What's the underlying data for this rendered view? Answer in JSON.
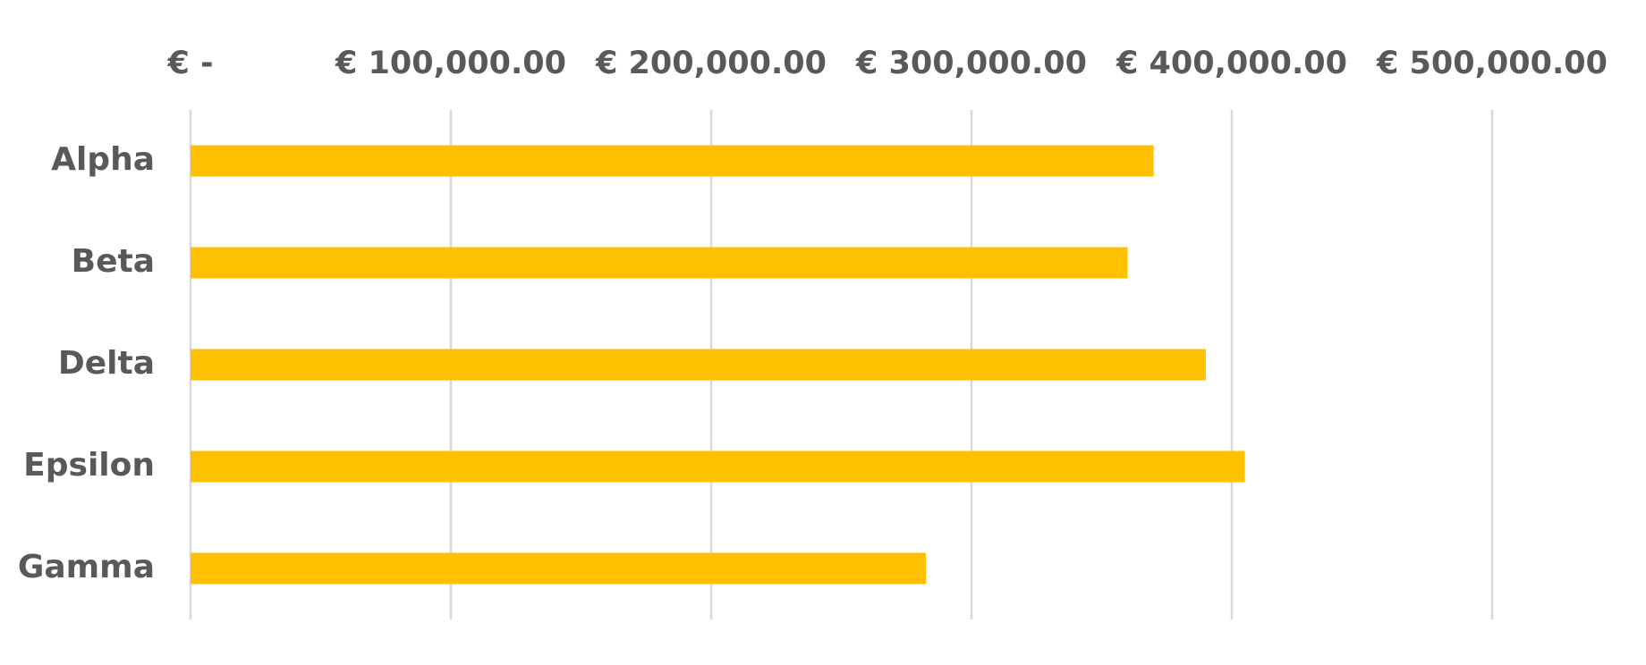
{
  "chart_data": {
    "type": "bar",
    "orientation": "horizontal",
    "categories": [
      "Alpha",
      "Beta",
      "Delta",
      "Epsilon",
      "Gamma"
    ],
    "values": [
      370000,
      360000,
      390000,
      405000,
      282500
    ],
    "xlim": [
      0,
      500000
    ],
    "x_ticks": [
      0,
      100000,
      200000,
      300000,
      400000,
      500000
    ],
    "x_tick_labels": [
      "€ -",
      "€ 100,000.00",
      "€ 200,000.00",
      "€ 300,000.00",
      "€ 400,000.00",
      "€ 500,000.00"
    ],
    "x_axis_position": "top",
    "grid": true,
    "bar_color": "#FFC000",
    "grid_color": "#D9D9D9",
    "label_color": "#595959",
    "title": "",
    "xlabel": "",
    "ylabel": ""
  }
}
